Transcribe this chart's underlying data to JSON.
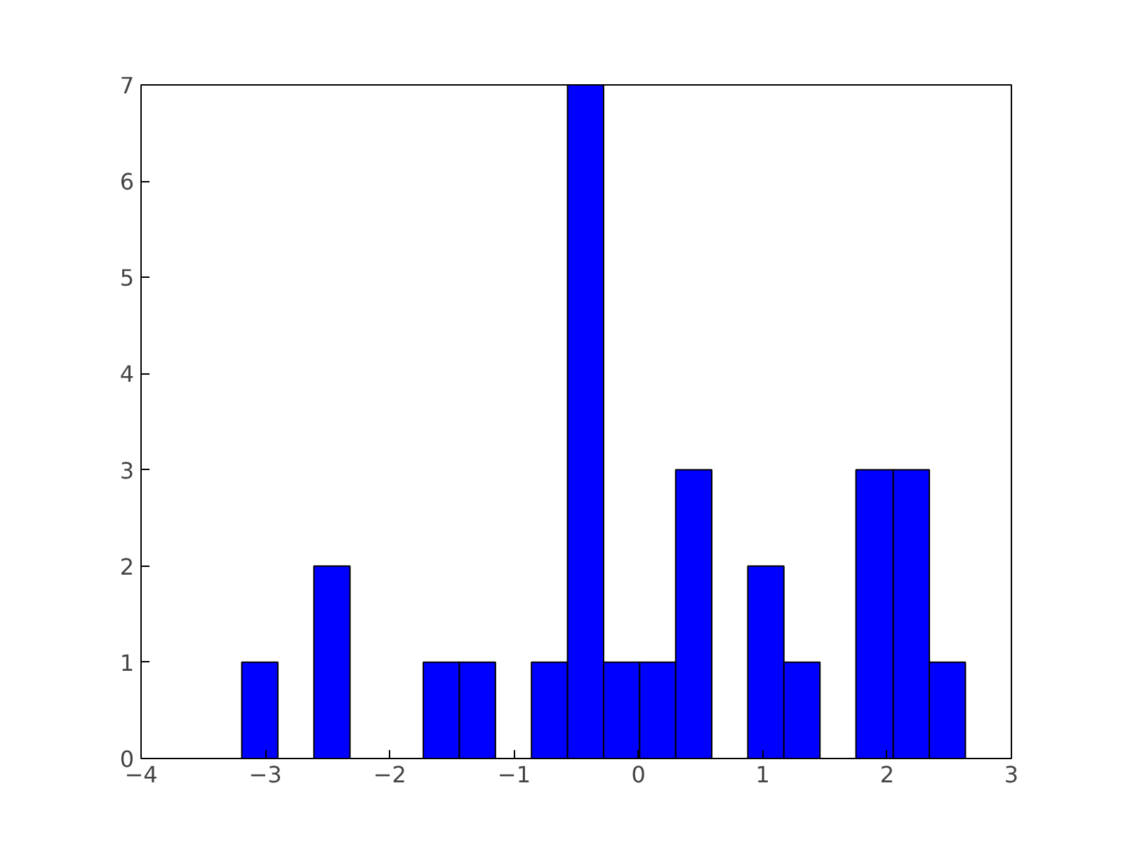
{
  "chart_data": {
    "type": "histogram",
    "bins": [
      -3.19,
      -2.9,
      -2.61,
      -2.32,
      -1.73,
      -1.44,
      -1.15,
      -0.86,
      -0.57,
      -0.28,
      0.01,
      0.3,
      0.59,
      0.88,
      1.17,
      1.46,
      1.75,
      2.05,
      2.34,
      2.63
    ],
    "values": [
      1,
      0,
      2,
      0,
      1,
      1,
      0,
      1,
      7,
      1,
      1,
      3,
      0,
      2,
      1,
      0,
      3,
      3,
      1
    ],
    "color": "#0000ff",
    "xlim": [
      -4,
      3
    ],
    "xticks": [
      {
        "value": -4,
        "label": "−4"
      },
      {
        "value": -3,
        "label": "−3"
      },
      {
        "value": -2,
        "label": "−2"
      },
      {
        "value": -1,
        "label": "−1"
      },
      0,
      1,
      2,
      3
    ],
    "ylim": [
      0,
      7
    ],
    "yticks": [
      0,
      1,
      2,
      3,
      4,
      5,
      6,
      7
    ],
    "grid": false
  }
}
